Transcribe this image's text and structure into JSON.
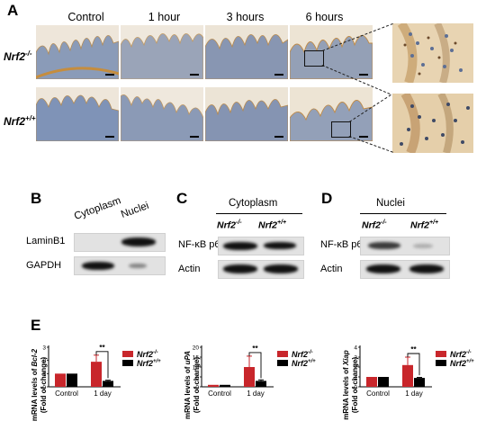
{
  "panelA": {
    "letter": "A",
    "columns": [
      "Control",
      "1 hour",
      "3 hours",
      "6 hours"
    ],
    "rows": [
      {
        "genotype": "Nrf2",
        "sup": "-/-"
      },
      {
        "genotype": "Nrf2",
        "sup": "+/+"
      }
    ]
  },
  "panelB": {
    "letter": "B",
    "cols": [
      "Cytoplasm",
      "Nuclei"
    ],
    "rows": [
      "LaminB1",
      "GAPDH"
    ]
  },
  "panelC": {
    "letter": "C",
    "group": "Cytoplasm",
    "g1": "Nrf2",
    "g1sup": "-/-",
    "g2": "Nrf2",
    "g2sup": "+/+",
    "rows": [
      "NF-κB p65",
      "Actin"
    ]
  },
  "panelD": {
    "letter": "D",
    "group": "Nuclei",
    "g1": "Nrf2",
    "g1sup": "-/-",
    "g2": "Nrf2",
    "g2sup": "+/+",
    "rows": [
      "NF-κB p65",
      "Actin"
    ]
  },
  "panelE": {
    "letter": "E",
    "colors": {
      "ko": "#c8262b",
      "wt": "#000000"
    },
    "legend": [
      {
        "name": "Nrf2",
        "sup": "-/-"
      },
      {
        "name": "Nrf2",
        "sup": "+/+"
      }
    ]
  },
  "chart_data": [
    {
      "type": "bar",
      "categories": [
        "Control",
        "1 day"
      ],
      "series": [
        {
          "name": "Nrf2-/-",
          "values": [
            1.0,
            1.9
          ],
          "errors": [
            0,
            0.5
          ]
        },
        {
          "name": "Nrf2+/+",
          "values": [
            1.0,
            0.45
          ],
          "errors": [
            0,
            0.05
          ]
        }
      ],
      "ylabel_line1": "mRNA levels of ",
      "ylabel_gene": "Bcl-2",
      "ylabel_line2": "(Fold of change)",
      "yticks": [
        0,
        1,
        2,
        3
      ],
      "ylim": [
        0,
        3
      ],
      "significance": "**"
    },
    {
      "type": "bar",
      "categories": [
        "Control",
        "1 day"
      ],
      "series": [
        {
          "name": "Nrf2-/-",
          "values": [
            1.0,
            10.0
          ],
          "errors": [
            0,
            5.5
          ]
        },
        {
          "name": "Nrf2+/+",
          "values": [
            1.0,
            3.0
          ],
          "errors": [
            0,
            0.5
          ]
        }
      ],
      "ylabel_line1": "mRNA levels of ",
      "ylabel_gene": "uPA",
      "ylabel_line2": "(Fold of change)",
      "yticks": [
        0,
        5,
        10,
        15,
        20
      ],
      "ylim": [
        0,
        20
      ],
      "significance": "**"
    },
    {
      "type": "bar",
      "categories": [
        "Control",
        "1 day"
      ],
      "series": [
        {
          "name": "Nrf2-/-",
          "values": [
            1.0,
            2.2
          ],
          "errors": [
            0,
            0.8
          ]
        },
        {
          "name": "Nrf2+/+",
          "values": [
            1.0,
            0.9
          ],
          "errors": [
            0,
            0.05
          ]
        }
      ],
      "ylabel_line1": "mRNA levels of ",
      "ylabel_gene": "Xiap",
      "ylabel_line2": "(Fold of change)",
      "yticks": [
        0,
        1,
        2,
        3,
        4
      ],
      "ylim": [
        0,
        4
      ],
      "significance": "**"
    }
  ]
}
